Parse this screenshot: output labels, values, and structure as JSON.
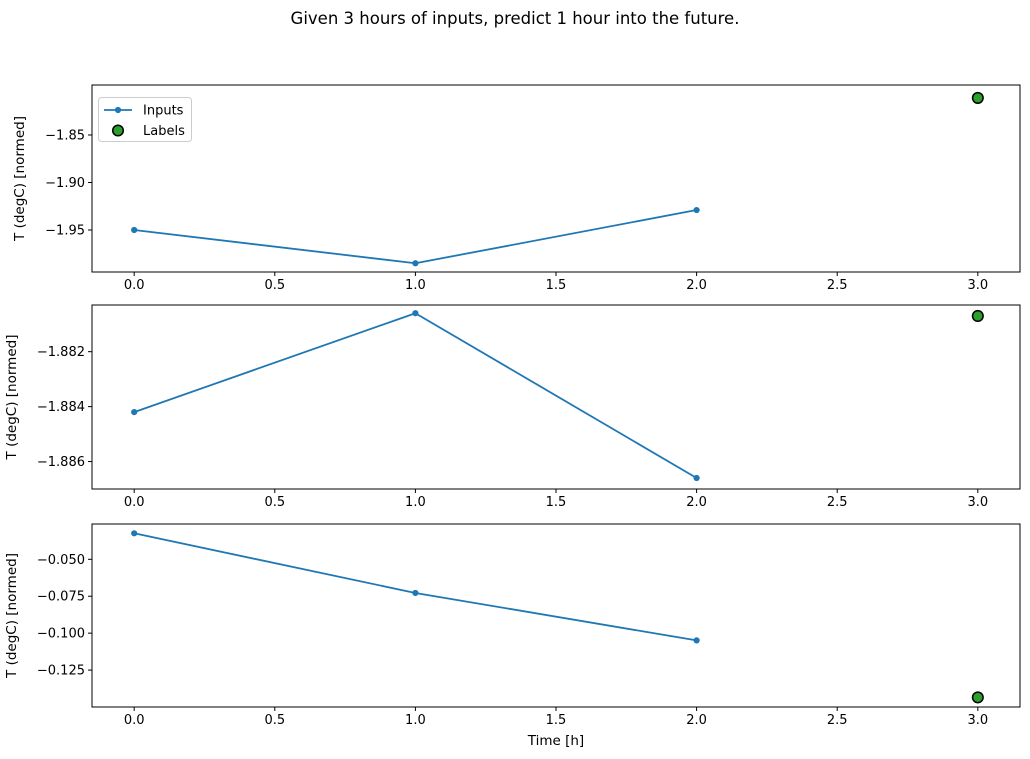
{
  "title": "Given 3 hours of inputs, predict 1 hour into the future.",
  "colors": {
    "inputs_line": "#1f77b4",
    "labels_fill": "#2ca02c",
    "labels_edge": "#000000",
    "axes_frame": "#000000",
    "tick_text": "#000000",
    "legend_border": "#cccccc",
    "background": "#ffffff"
  },
  "legend": {
    "position": "upper-left",
    "entries": [
      {
        "label": "Inputs",
        "marker": "line-with-dot"
      },
      {
        "label": "Labels",
        "marker": "filled-circle"
      }
    ]
  },
  "chart_data": [
    {
      "type": "line",
      "title": "",
      "xlabel": "",
      "ylabel": "T (degC) [normed]",
      "x_ticks": {
        "values": [
          0,
          0.5,
          1,
          1.5,
          2,
          2.5,
          3
        ],
        "labels": [
          "0.0",
          "0.5",
          "1.0",
          "1.5",
          "2.0",
          "2.5",
          "3.0"
        ]
      },
      "xlim": [
        -0.15,
        3.15
      ],
      "y_ticks": {
        "values": [
          -1.85,
          -1.9,
          -1.95
        ],
        "labels": [
          "−1.85",
          "−1.90",
          "−1.95"
        ]
      },
      "ylim": [
        -1.9942,
        -1.7974
      ],
      "grid": false,
      "series": [
        {
          "name": "Inputs",
          "type": "line+marker",
          "x": [
            0,
            1,
            2
          ],
          "y": [
            -1.95,
            -1.985,
            -1.929
          ]
        },
        {
          "name": "Labels",
          "type": "scatter",
          "x": [
            3
          ],
          "y": [
            -1.811
          ]
        }
      ]
    },
    {
      "type": "line",
      "title": "",
      "xlabel": "",
      "ylabel": "T (degC) [normed]",
      "x_ticks": {
        "values": [
          0,
          0.5,
          1,
          1.5,
          2,
          2.5,
          3
        ],
        "labels": [
          "0.0",
          "0.5",
          "1.0",
          "1.5",
          "2.0",
          "2.5",
          "3.0"
        ]
      },
      "xlim": [
        -0.15,
        3.15
      ],
      "y_ticks": {
        "values": [
          -1.882,
          -1.884,
          -1.886
        ],
        "labels": [
          "−1.882",
          "−1.884",
          "−1.886"
        ]
      },
      "ylim": [
        -1.887,
        -1.8803
      ],
      "grid": false,
      "series": [
        {
          "name": "Inputs",
          "type": "line+marker",
          "x": [
            0,
            1,
            2
          ],
          "y": [
            -1.8842,
            -1.8806,
            -1.8866
          ]
        },
        {
          "name": "Labels",
          "type": "scatter",
          "x": [
            3
          ],
          "y": [
            -1.8807
          ]
        }
      ]
    },
    {
      "type": "line",
      "title": "",
      "xlabel": "Time [h]",
      "ylabel": "T (degC) [normed]",
      "x_ticks": {
        "values": [
          0,
          0.5,
          1,
          1.5,
          2,
          2.5,
          3
        ],
        "labels": [
          "0.0",
          "0.5",
          "1.0",
          "1.5",
          "2.0",
          "2.5",
          "3.0"
        ]
      },
      "xlim": [
        -0.15,
        3.15
      ],
      "y_ticks": {
        "values": [
          -0.05,
          -0.075,
          -0.1,
          -0.125
        ],
        "labels": [
          "−0.050",
          "−0.075",
          "−0.100",
          "−0.125"
        ]
      },
      "ylim": [
        -0.15,
        -0.0261
      ],
      "grid": false,
      "series": [
        {
          "name": "Inputs",
          "type": "line+marker",
          "x": [
            0,
            1,
            2
          ],
          "y": [
            -0.0324,
            -0.0728,
            -0.1049
          ]
        },
        {
          "name": "Labels",
          "type": "scatter",
          "x": [
            3
          ],
          "y": [
            -0.1435
          ]
        }
      ]
    }
  ]
}
